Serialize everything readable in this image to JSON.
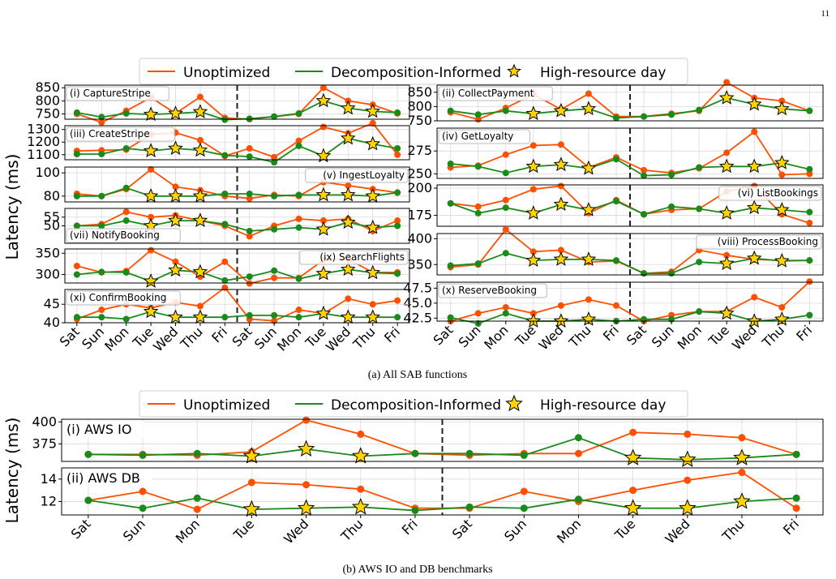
{
  "page": {
    "number": "11"
  },
  "colors": {
    "unopt": "#ff4f00",
    "decomp": "#1a8a1a",
    "star": "#ffd400",
    "grid": "#d9d9d9"
  },
  "legend": {
    "unopt": "Unoptimized",
    "decomp": "Decomposition-Informed",
    "star": "High-resource day"
  },
  "ylabel": "Latency (ms)",
  "x_labels": [
    "Sat",
    "Sun",
    "Mon",
    "Tue",
    "Wed",
    "Thu",
    "Fri",
    "Sat",
    "Sun",
    "Mon",
    "Tue",
    "Wed",
    "Thu",
    "Fri"
  ],
  "captions": {
    "a": "(a) All SAB functions",
    "b": "(b) AWS IO and DB benchmarks"
  },
  "chart_data": [
    {
      "type": "line",
      "title": "(i) CaptureStripe",
      "label_pos": "top-left",
      "ylim": [
        730,
        860
      ],
      "yticks": [
        750,
        800,
        850
      ],
      "series": [
        {
          "name": "Unoptimized",
          "values": [
            750,
            718,
            762,
            813,
            752,
            815,
            735,
            730,
            740,
            750,
            850,
            800,
            785,
            752
          ]
        },
        {
          "name": "Decomposition-Informed",
          "values": [
            755,
            738,
            752,
            748,
            752,
            758,
            728,
            732,
            740,
            752,
            800,
            772,
            760,
            755
          ]
        }
      ],
      "high_resource": [
        3,
        4,
        5,
        10,
        11,
        12
      ]
    },
    {
      "type": "line",
      "title": "(ii) CollectPayment",
      "label_pos": "top-left",
      "ylim": [
        750,
        875
      ],
      "yticks": [
        750,
        800,
        850
      ],
      "series": [
        {
          "name": "Unoptimized",
          "values": [
            780,
            755,
            795,
            843,
            790,
            845,
            765,
            765,
            775,
            785,
            885,
            830,
            820,
            785
          ]
        },
        {
          "name": "Decomposition-Informed",
          "values": [
            785,
            772,
            785,
            775,
            785,
            792,
            760,
            765,
            772,
            788,
            830,
            808,
            792,
            785
          ]
        }
      ],
      "high_resource": [
        3,
        4,
        5,
        10,
        11,
        12
      ]
    },
    {
      "type": "line",
      "title": "(iii) CreateStripe",
      "label_pos": "top-left",
      "ylim": [
        1060,
        1330
      ],
      "yticks": [
        1100,
        1200,
        1300
      ],
      "series": [
        {
          "name": "Unoptimized",
          "values": [
            1130,
            1135,
            1140,
            1260,
            1275,
            1215,
            1090,
            1150,
            1080,
            1210,
            1320,
            1270,
            1350,
            1100
          ]
        },
        {
          "name": "Decomposition-Informed",
          "values": [
            1105,
            1105,
            1150,
            1130,
            1150,
            1135,
            1095,
            1085,
            1040,
            1170,
            1090,
            1230,
            1185,
            1150
          ]
        }
      ],
      "high_resource": [
        3,
        4,
        5,
        10,
        11,
        12
      ]
    },
    {
      "type": "line",
      "title": "(iv) GetLoyalty",
      "label_pos": "top-left",
      "ylim": [
        245,
        300
      ],
      "yticks": [
        250,
        275
      ],
      "series": [
        {
          "name": "Unoptimized",
          "values": [
            257,
            259,
            271,
            281,
            282,
            257,
            268,
            254,
            251,
            256,
            273,
            296,
            249,
            250
          ]
        },
        {
          "name": "Decomposition-Informed",
          "values": [
            261,
            258,
            251,
            258,
            260,
            256,
            266,
            248,
            249,
            257,
            258,
            258,
            262,
            255
          ]
        }
      ],
      "high_resource": [
        3,
        4,
        5,
        10,
        11,
        12
      ]
    },
    {
      "type": "line",
      "title": "(v) IngestLoyalty",
      "label_pos": "top-right",
      "ylim": [
        75,
        105
      ],
      "yticks": [
        80,
        100
      ],
      "series": [
        {
          "name": "Unoptimized",
          "values": [
            82,
            80,
            86,
            103,
            88,
            85,
            80,
            78,
            81,
            80,
            92,
            89,
            86,
            83
          ]
        },
        {
          "name": "Decomposition-Informed",
          "values": [
            80,
            80,
            87,
            80,
            80,
            80,
            82,
            82,
            80,
            81,
            81,
            81,
            80,
            83
          ]
        }
      ],
      "high_resource": [
        3,
        4,
        5,
        10,
        11,
        12
      ]
    },
    {
      "type": "line",
      "title": "(vi) ListBookings",
      "label_pos": "top-right",
      "ylim": [
        165,
        203
      ],
      "yticks": [
        175,
        200
      ],
      "series": [
        {
          "name": "Unoptimized",
          "values": [
            186,
            183,
            189,
            199,
            202,
            177,
            189,
            176,
            180,
            181,
            197,
            202,
            176,
            168
          ]
        },
        {
          "name": "Decomposition-Informed",
          "values": [
            186,
            177,
            182,
            177,
            185,
            180,
            188,
            176,
            183,
            181,
            177,
            182,
            180,
            178
          ]
        }
      ],
      "high_resource": [
        3,
        4,
        5,
        10,
        11,
        12
      ]
    },
    {
      "type": "line",
      "title": "(vii) NotifyBooking",
      "label_pos": "bottom-left",
      "ylim": [
        40,
        60
      ],
      "yticks": [
        50,
        55
      ],
      "series": [
        {
          "name": "Unoptimized",
          "values": [
            50,
            51,
            58,
            55,
            56,
            53,
            50,
            44,
            50,
            54,
            53,
            54,
            47,
            53
          ]
        },
        {
          "name": "Decomposition-Informed",
          "values": [
            50,
            50,
            53,
            50,
            53,
            53,
            51,
            47,
            48,
            49,
            48,
            52,
            49,
            50
          ]
        }
      ],
      "high_resource": [
        3,
        4,
        5,
        10,
        11,
        12
      ]
    },
    {
      "type": "line",
      "title": "(viii) ProcessBooking",
      "label_pos": "top-right",
      "ylim": [
        330,
        410
      ],
      "yticks": [
        350,
        400
      ],
      "series": [
        {
          "name": "Unoptimized",
          "values": [
            345,
            350,
            418,
            375,
            378,
            355,
            357,
            333,
            336,
            378,
            368,
            360,
            358,
            358
          ]
        },
        {
          "name": "Decomposition-Informed",
          "values": [
            348,
            352,
            372,
            358,
            360,
            360,
            358,
            333,
            333,
            355,
            352,
            362,
            357,
            358
          ]
        }
      ],
      "high_resource": [
        3,
        4,
        5,
        10,
        11,
        12
      ]
    },
    {
      "type": "line",
      "title": "(ix) SearchFlights",
      "label_pos": "top-right",
      "ylim": [
        280,
        360
      ],
      "yticks": [
        300,
        350
      ],
      "series": [
        {
          "name": "Unoptimized",
          "values": [
            320,
            305,
            308,
            357,
            330,
            295,
            330,
            279,
            292,
            292,
            334,
            336,
            305,
            305
          ]
        },
        {
          "name": "Decomposition-Informed",
          "values": [
            300,
            306,
            305,
            284,
            310,
            306,
            286,
            295,
            309,
            290,
            302,
            312,
            304,
            302
          ]
        }
      ],
      "high_resource": [
        3,
        4,
        5,
        10,
        11,
        12
      ]
    },
    {
      "type": "line",
      "title": "(x) ReserveBooking",
      "label_pos": "top-left",
      "ylim": [
        42,
        48.5
      ],
      "yticks": [
        42.5,
        45.0,
        47.5
      ],
      "series": [
        {
          "name": "Unoptimized",
          "values": [
            42.0,
            43.3,
            44.3,
            43.3,
            44.6,
            45.6,
            44.6,
            42.0,
            43.0,
            43.6,
            43.6,
            46.0,
            44.3,
            48.6
          ]
        },
        {
          "name": "Decomposition-Informed",
          "values": [
            42.6,
            41.6,
            43.3,
            42.0,
            42.0,
            42.3,
            42.0,
            42.3,
            42.3,
            43.6,
            43.3,
            42.0,
            42.3,
            43.0
          ]
        }
      ],
      "high_resource": [
        3,
        4,
        5,
        10,
        11,
        12
      ]
    },
    {
      "type": "line",
      "title": "(xi) ConfirmBooking",
      "label_pos": "top-left",
      "ylim": [
        40,
        49
      ],
      "yticks": [
        40,
        45
      ],
      "series": [
        {
          "name": "Unoptimized",
          "values": [
            41,
            43.5,
            45,
            44,
            45.5,
            44.5,
            49.5,
            41,
            40.5,
            43.5,
            42.5,
            46.5,
            45,
            46
          ]
        },
        {
          "name": "Decomposition-Informed",
          "values": [
            41.5,
            41.5,
            41,
            43,
            41.5,
            41.5,
            41.5,
            42,
            42,
            41.5,
            42.5,
            41.5,
            41.5,
            41.5
          ]
        }
      ],
      "high_resource": [
        3,
        4,
        5,
        10,
        11,
        12
      ]
    },
    {
      "type": "line",
      "title": "(i) AWS IO",
      "label_pos": "top-left",
      "ylim": [
        355,
        403
      ],
      "yticks": [
        375,
        400
      ],
      "series": [
        {
          "name": "Unoptimized",
          "values": [
            363,
            363,
            362,
            366,
            402,
            386,
            364,
            362,
            364,
            364,
            388,
            386,
            382,
            363
          ]
        },
        {
          "name": "Decomposition-Informed",
          "values": [
            363,
            362,
            364,
            361,
            369,
            361,
            364,
            364,
            362,
            382,
            359,
            357,
            359,
            363
          ]
        }
      ],
      "high_resource": [
        3,
        4,
        5,
        10,
        11,
        12
      ]
    },
    {
      "type": "line",
      "title": "(ii) AWS DB",
      "label_pos": "top-left",
      "ylim": [
        10.8,
        15
      ],
      "yticks": [
        12,
        14
      ],
      "series": [
        {
          "name": "Unoptimized",
          "values": [
            12.1,
            12.9,
            11.3,
            13.7,
            13.5,
            13.1,
            11.4,
            11.4,
            12.9,
            12.0,
            13.0,
            13.9,
            14.6,
            11.4
          ]
        },
        {
          "name": "Decomposition-Informed",
          "values": [
            12.1,
            11.4,
            12.3,
            11.3,
            11.4,
            11.5,
            11.2,
            11.5,
            11.4,
            12.2,
            11.4,
            11.4,
            12.0,
            12.3
          ]
        }
      ],
      "high_resource": [
        3,
        4,
        5,
        10,
        11,
        12
      ]
    }
  ]
}
